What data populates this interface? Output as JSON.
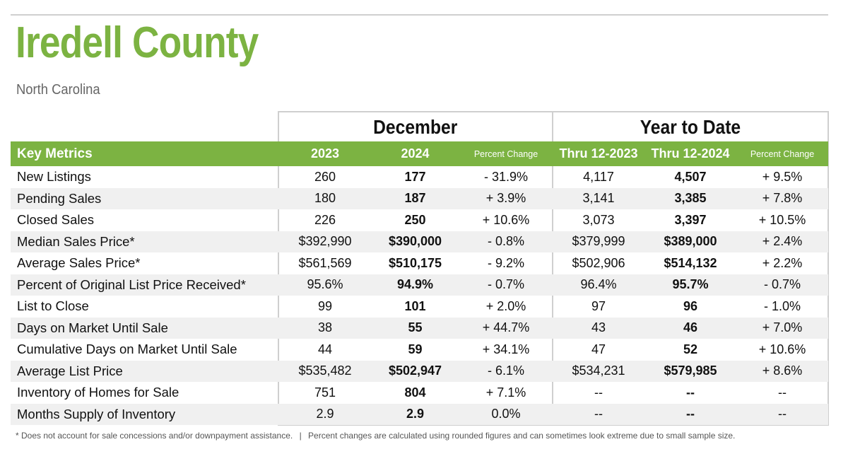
{
  "header": {
    "title": "Iredell County",
    "subtitle": "North Carolina"
  },
  "groups": {
    "december": "December",
    "year_to_date": "Year to Date"
  },
  "columns": [
    "Key Metrics",
    "2023",
    "2024",
    "Percent Change",
    "Thru 12-2023",
    "Thru 12-2024",
    "Percent Change"
  ],
  "rows": [
    [
      "New Listings",
      "260",
      "177",
      "- 31.9%",
      "4,117",
      "4,507",
      "+ 9.5%"
    ],
    [
      "Pending Sales",
      "180",
      "187",
      "+ 3.9%",
      "3,141",
      "3,385",
      "+ 7.8%"
    ],
    [
      "Closed Sales",
      "226",
      "250",
      "+ 10.6%",
      "3,073",
      "3,397",
      "+ 10.5%"
    ],
    [
      "Median Sales Price*",
      "$392,990",
      "$390,000",
      "- 0.8%",
      "$379,999",
      "$389,000",
      "+ 2.4%"
    ],
    [
      "Average Sales Price*",
      "$561,569",
      "$510,175",
      "- 9.2%",
      "$502,906",
      "$514,132",
      "+ 2.2%"
    ],
    [
      "Percent of Original List Price Received*",
      "95.6%",
      "94.9%",
      "- 0.7%",
      "96.4%",
      "95.7%",
      "- 0.7%"
    ],
    [
      "List to Close",
      "99",
      "101",
      "+ 2.0%",
      "97",
      "96",
      "- 1.0%"
    ],
    [
      "Days on Market Until Sale",
      "38",
      "55",
      "+ 44.7%",
      "43",
      "46",
      "+ 7.0%"
    ],
    [
      "Cumulative Days on Market Until Sale",
      "44",
      "59",
      "+ 34.1%",
      "47",
      "52",
      "+ 10.6%"
    ],
    [
      "Average List Price",
      "$535,482",
      "$502,947",
      "- 6.1%",
      "$534,231",
      "$579,985",
      "+ 8.6%"
    ],
    [
      "Inventory of Homes for Sale",
      "751",
      "804",
      "+ 7.1%",
      "--",
      "--",
      "--"
    ],
    [
      "Months Supply of Inventory",
      "2.9",
      "2.9",
      "0.0%",
      "--",
      "--",
      "--"
    ]
  ],
  "footnote": {
    "left": "* Does not account for sale concessions and/or downpayment assistance.",
    "separator": "|",
    "right": "Percent changes are calculated using rounded figures and can sometimes look extreme due to small sample size."
  },
  "colors": {
    "accent": "#7cb342",
    "row_alt": "#f0f0f0"
  }
}
